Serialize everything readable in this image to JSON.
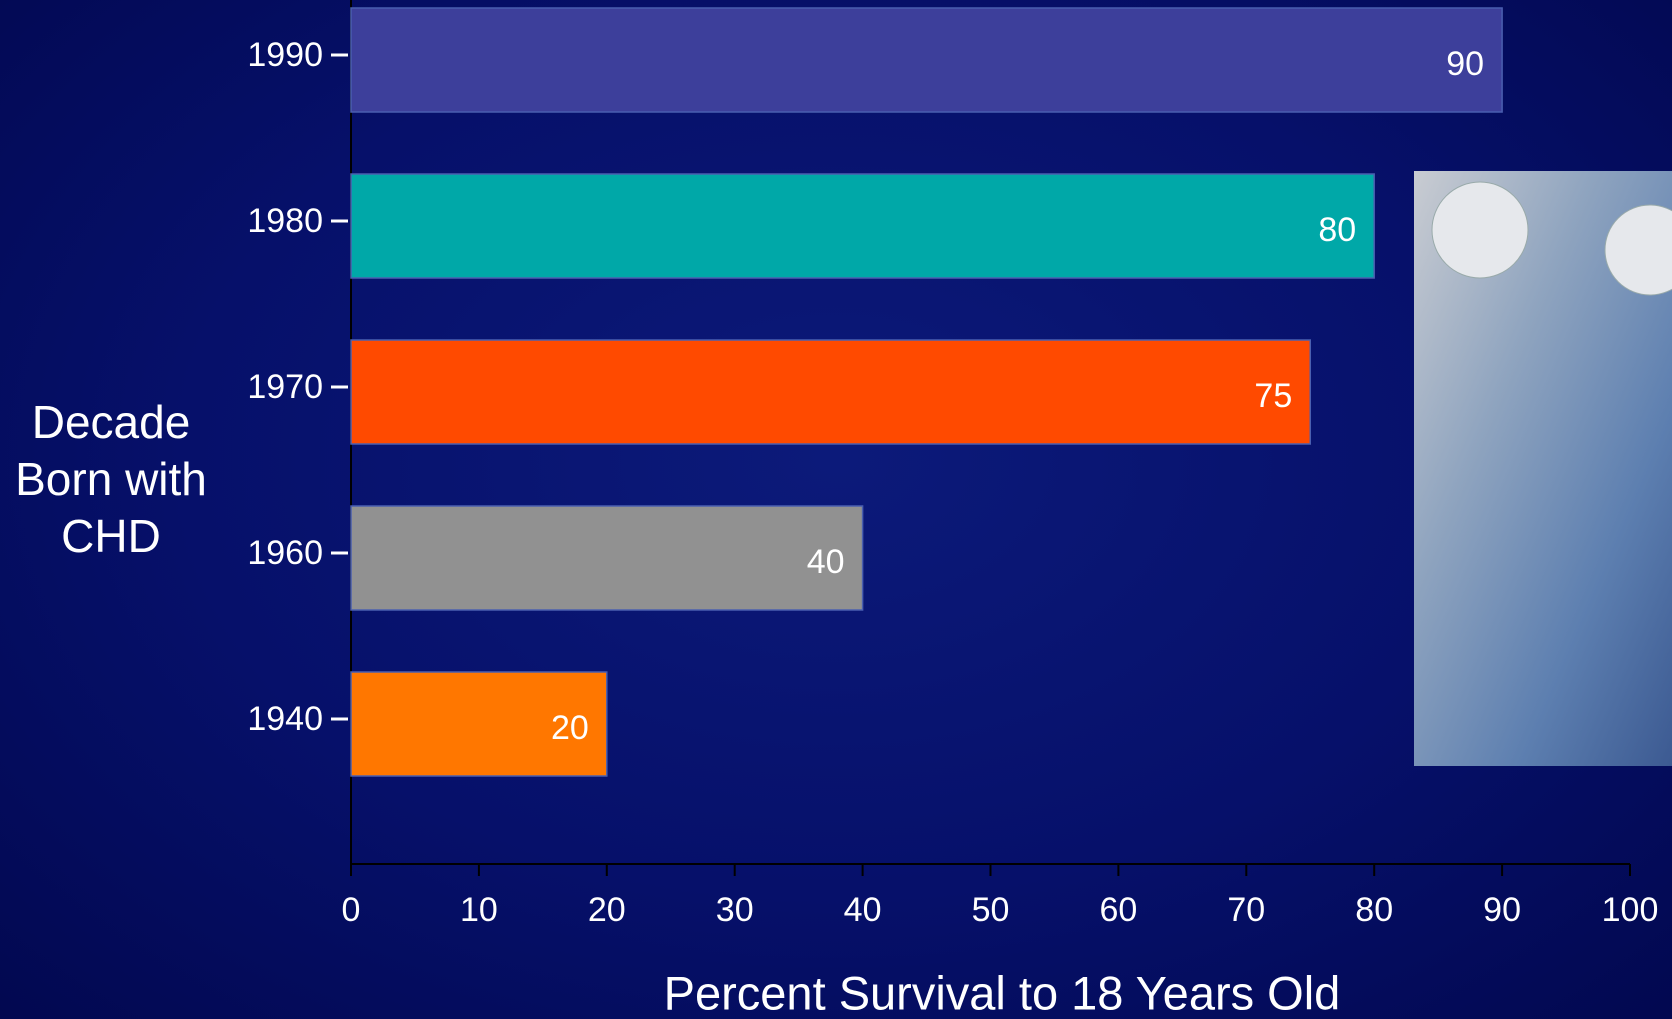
{
  "chart_data": {
    "type": "hbar",
    "ylabel": "Decade Born with CHD",
    "xlabel": "Percent Survival to 18 Years Old",
    "categories": [
      "1990",
      "1980",
      "1970",
      "1960",
      "1940"
    ],
    "values": [
      90,
      80,
      75,
      40,
      20
    ],
    "colors": [
      "#3d3f9b",
      "#00a8a8",
      "#ff4a00",
      "#919191",
      "#ff7700"
    ],
    "xlim": [
      0,
      100
    ],
    "xticks": [
      0,
      10,
      20,
      30,
      40,
      50,
      60,
      70,
      80,
      90,
      100
    ],
    "grid": false
  }
}
